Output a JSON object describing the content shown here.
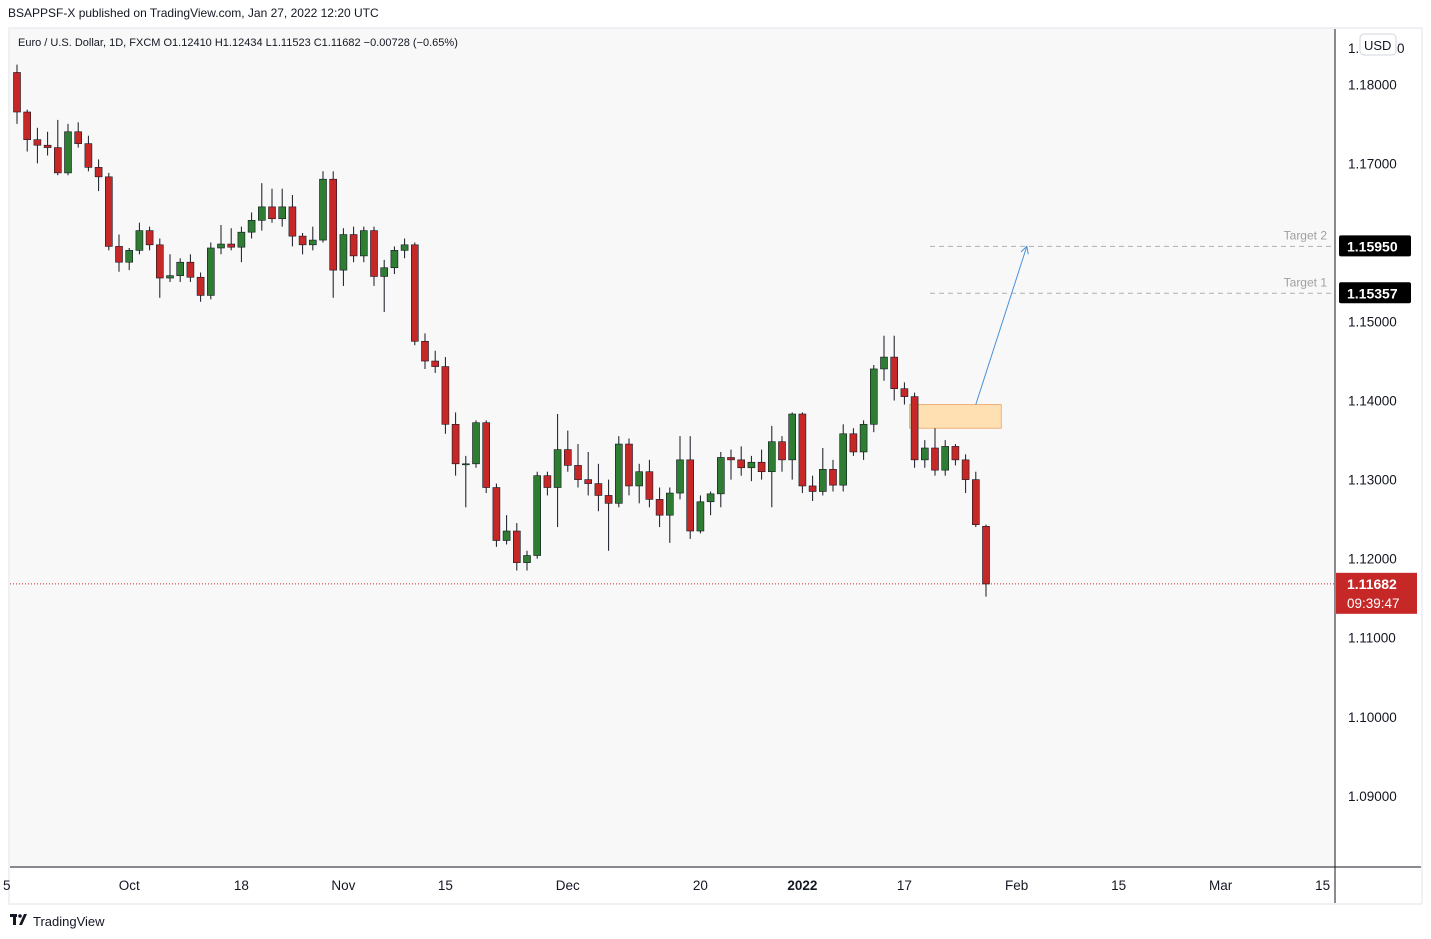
{
  "header": {
    "published": "BSAPPSF-X published on TradingView.com, Jan 27, 2022 12:20 UTC"
  },
  "chart_data": {
    "type": "candlestick",
    "title": "Euro / U.S. Dollar, 1D, FXCM",
    "ohlc_label": {
      "o": "O1.12410",
      "h": "H1.12434",
      "l": "L1.11523",
      "c": "C1.11682",
      "change": "−0.00728 (−0.65%)"
    },
    "currency": "USD",
    "ylim": [
      1.081,
      1.187
    ],
    "y_ticks": [
      1.09,
      1.1,
      1.11,
      1.12,
      1.13,
      1.14,
      1.15,
      1.17,
      1.18
    ],
    "y_tick_labels": [
      "1.09000",
      "1.10000",
      "1.11000",
      "1.12000",
      "1.13000",
      "1.14000",
      "1.15000",
      "1.17000",
      "1.18000"
    ],
    "top_tick_label": "1.",
    "top_tick_label_tail": "0",
    "x_ticks": [
      {
        "label": "5",
        "bar": -1,
        "bold": false
      },
      {
        "label": "Oct",
        "bar": 11,
        "bold": false
      },
      {
        "label": "18",
        "bar": 22,
        "bold": false
      },
      {
        "label": "Nov",
        "bar": 32,
        "bold": false
      },
      {
        "label": "15",
        "bar": 42,
        "bold": false
      },
      {
        "label": "Dec",
        "bar": 54,
        "bold": false
      },
      {
        "label": "20",
        "bar": 67,
        "bold": false
      },
      {
        "label": "2022",
        "bar": 77,
        "bold": true
      },
      {
        "label": "17",
        "bar": 87,
        "bold": false
      },
      {
        "label": "Feb",
        "bar": 98,
        "bold": false
      },
      {
        "label": "15",
        "bar": 108,
        "bold": false
      },
      {
        "label": "Mar",
        "bar": 118,
        "bold": false
      },
      {
        "label": "15",
        "bar": 128,
        "bold": false
      }
    ],
    "candles": [
      {
        "o": 1.1815,
        "h": 1.1825,
        "l": 1.175,
        "c": 1.1765
      },
      {
        "o": 1.1765,
        "h": 1.1768,
        "l": 1.1715,
        "c": 1.173
      },
      {
        "o": 1.173,
        "h": 1.1745,
        "l": 1.17,
        "c": 1.1723
      },
      {
        "o": 1.1723,
        "h": 1.174,
        "l": 1.171,
        "c": 1.172
      },
      {
        "o": 1.172,
        "h": 1.1755,
        "l": 1.1685,
        "c": 1.1688
      },
      {
        "o": 1.1688,
        "h": 1.175,
        "l": 1.1685,
        "c": 1.174
      },
      {
        "o": 1.174,
        "h": 1.1752,
        "l": 1.172,
        "c": 1.1725
      },
      {
        "o": 1.1725,
        "h": 1.1735,
        "l": 1.169,
        "c": 1.1695
      },
      {
        "o": 1.1695,
        "h": 1.1705,
        "l": 1.1665,
        "c": 1.1683
      },
      {
        "o": 1.1683,
        "h": 1.1688,
        "l": 1.159,
        "c": 1.1595
      },
      {
        "o": 1.1595,
        "h": 1.161,
        "l": 1.1563,
        "c": 1.1575
      },
      {
        "o": 1.1575,
        "h": 1.1593,
        "l": 1.1565,
        "c": 1.159
      },
      {
        "o": 1.159,
        "h": 1.1625,
        "l": 1.1585,
        "c": 1.1615
      },
      {
        "o": 1.1615,
        "h": 1.162,
        "l": 1.159,
        "c": 1.1597
      },
      {
        "o": 1.1597,
        "h": 1.1605,
        "l": 1.153,
        "c": 1.1555
      },
      {
        "o": 1.1555,
        "h": 1.1585,
        "l": 1.155,
        "c": 1.1558
      },
      {
        "o": 1.1558,
        "h": 1.158,
        "l": 1.155,
        "c": 1.1575
      },
      {
        "o": 1.1575,
        "h": 1.1585,
        "l": 1.155,
        "c": 1.1556
      },
      {
        "o": 1.1556,
        "h": 1.1562,
        "l": 1.1525,
        "c": 1.1533
      },
      {
        "o": 1.1533,
        "h": 1.16,
        "l": 1.1528,
        "c": 1.1593
      },
      {
        "o": 1.1593,
        "h": 1.1622,
        "l": 1.1585,
        "c": 1.1598
      },
      {
        "o": 1.1598,
        "h": 1.1618,
        "l": 1.159,
        "c": 1.1594
      },
      {
        "o": 1.1594,
        "h": 1.162,
        "l": 1.1575,
        "c": 1.1613
      },
      {
        "o": 1.1613,
        "h": 1.1638,
        "l": 1.1605,
        "c": 1.1628
      },
      {
        "o": 1.1628,
        "h": 1.1675,
        "l": 1.1615,
        "c": 1.1645
      },
      {
        "o": 1.1645,
        "h": 1.1668,
        "l": 1.1625,
        "c": 1.163
      },
      {
        "o": 1.163,
        "h": 1.1668,
        "l": 1.162,
        "c": 1.1645
      },
      {
        "o": 1.1645,
        "h": 1.166,
        "l": 1.1595,
        "c": 1.1608
      },
      {
        "o": 1.1608,
        "h": 1.1612,
        "l": 1.1585,
        "c": 1.1597
      },
      {
        "o": 1.1597,
        "h": 1.162,
        "l": 1.159,
        "c": 1.1603
      },
      {
        "o": 1.1603,
        "h": 1.169,
        "l": 1.16,
        "c": 1.168
      },
      {
        "o": 1.168,
        "h": 1.169,
        "l": 1.153,
        "c": 1.1565
      },
      {
        "o": 1.1565,
        "h": 1.1618,
        "l": 1.1545,
        "c": 1.161
      },
      {
        "o": 1.161,
        "h": 1.162,
        "l": 1.1575,
        "c": 1.1583
      },
      {
        "o": 1.1583,
        "h": 1.162,
        "l": 1.1575,
        "c": 1.1615
      },
      {
        "o": 1.1615,
        "h": 1.162,
        "l": 1.1545,
        "c": 1.1557
      },
      {
        "o": 1.1557,
        "h": 1.1578,
        "l": 1.1512,
        "c": 1.1568
      },
      {
        "o": 1.1568,
        "h": 1.1595,
        "l": 1.156,
        "c": 1.159
      },
      {
        "o": 1.159,
        "h": 1.1605,
        "l": 1.158,
        "c": 1.1597
      },
      {
        "o": 1.1597,
        "h": 1.16,
        "l": 1.147,
        "c": 1.1475
      },
      {
        "o": 1.1475,
        "h": 1.1485,
        "l": 1.144,
        "c": 1.145
      },
      {
        "o": 1.145,
        "h": 1.1463,
        "l": 1.1435,
        "c": 1.1443
      },
      {
        "o": 1.1443,
        "h": 1.1455,
        "l": 1.1358,
        "c": 1.137
      },
      {
        "o": 1.137,
        "h": 1.1385,
        "l": 1.1305,
        "c": 1.132
      },
      {
        "o": 1.132,
        "h": 1.133,
        "l": 1.1265,
        "c": 1.132
      },
      {
        "o": 1.132,
        "h": 1.1375,
        "l": 1.1315,
        "c": 1.1372
      },
      {
        "o": 1.1372,
        "h": 1.1375,
        "l": 1.1283,
        "c": 1.129
      },
      {
        "o": 1.129,
        "h": 1.1295,
        "l": 1.1215,
        "c": 1.1223
      },
      {
        "o": 1.1223,
        "h": 1.1255,
        "l": 1.1218,
        "c": 1.1235
      },
      {
        "o": 1.1235,
        "h": 1.1245,
        "l": 1.1185,
        "c": 1.1195
      },
      {
        "o": 1.1195,
        "h": 1.121,
        "l": 1.1185,
        "c": 1.1204
      },
      {
        "o": 1.1204,
        "h": 1.131,
        "l": 1.12,
        "c": 1.1305
      },
      {
        "o": 1.1305,
        "h": 1.131,
        "l": 1.128,
        "c": 1.129
      },
      {
        "o": 1.129,
        "h": 1.1383,
        "l": 1.124,
        "c": 1.1338
      },
      {
        "o": 1.1338,
        "h": 1.1362,
        "l": 1.131,
        "c": 1.1318
      },
      {
        "o": 1.1318,
        "h": 1.1345,
        "l": 1.129,
        "c": 1.13
      },
      {
        "o": 1.13,
        "h": 1.1335,
        "l": 1.128,
        "c": 1.1295
      },
      {
        "o": 1.1295,
        "h": 1.132,
        "l": 1.126,
        "c": 1.128
      },
      {
        "o": 1.128,
        "h": 1.13,
        "l": 1.121,
        "c": 1.127
      },
      {
        "o": 1.127,
        "h": 1.1355,
        "l": 1.1265,
        "c": 1.1345
      },
      {
        "o": 1.1345,
        "h": 1.1352,
        "l": 1.128,
        "c": 1.1292
      },
      {
        "o": 1.1292,
        "h": 1.132,
        "l": 1.127,
        "c": 1.131
      },
      {
        "o": 1.131,
        "h": 1.1325,
        "l": 1.1265,
        "c": 1.1275
      },
      {
        "o": 1.1275,
        "h": 1.129,
        "l": 1.124,
        "c": 1.1255
      },
      {
        "o": 1.1255,
        "h": 1.129,
        "l": 1.122,
        "c": 1.1283
      },
      {
        "o": 1.1283,
        "h": 1.1355,
        "l": 1.1275,
        "c": 1.1325
      },
      {
        "o": 1.1325,
        "h": 1.1355,
        "l": 1.1225,
        "c": 1.1235
      },
      {
        "o": 1.1235,
        "h": 1.128,
        "l": 1.1232,
        "c": 1.1272
      },
      {
        "o": 1.1272,
        "h": 1.1285,
        "l": 1.1255,
        "c": 1.1282
      },
      {
        "o": 1.1282,
        "h": 1.1335,
        "l": 1.1265,
        "c": 1.1328
      },
      {
        "o": 1.1328,
        "h": 1.1338,
        "l": 1.13,
        "c": 1.1325
      },
      {
        "o": 1.1325,
        "h": 1.1342,
        "l": 1.1305,
        "c": 1.1315
      },
      {
        "o": 1.1315,
        "h": 1.133,
        "l": 1.1298,
        "c": 1.1322
      },
      {
        "o": 1.1322,
        "h": 1.1338,
        "l": 1.13,
        "c": 1.131
      },
      {
        "o": 1.131,
        "h": 1.1368,
        "l": 1.1265,
        "c": 1.1348
      },
      {
        "o": 1.1348,
        "h": 1.1355,
        "l": 1.131,
        "c": 1.1325
      },
      {
        "o": 1.1325,
        "h": 1.1385,
        "l": 1.13,
        "c": 1.1383
      },
      {
        "o": 1.1383,
        "h": 1.1385,
        "l": 1.1283,
        "c": 1.1292
      },
      {
        "o": 1.1292,
        "h": 1.1305,
        "l": 1.1273,
        "c": 1.1285
      },
      {
        "o": 1.1285,
        "h": 1.134,
        "l": 1.128,
        "c": 1.1313
      },
      {
        "o": 1.1313,
        "h": 1.1325,
        "l": 1.1285,
        "c": 1.1293
      },
      {
        "o": 1.1293,
        "h": 1.137,
        "l": 1.1285,
        "c": 1.1358
      },
      {
        "o": 1.1358,
        "h": 1.1365,
        "l": 1.133,
        "c": 1.1335
      },
      {
        "o": 1.1335,
        "h": 1.1375,
        "l": 1.1325,
        "c": 1.137
      },
      {
        "o": 1.137,
        "h": 1.1445,
        "l": 1.136,
        "c": 1.144
      },
      {
        "o": 1.144,
        "h": 1.1482,
        "l": 1.1425,
        "c": 1.1455
      },
      {
        "o": 1.1455,
        "h": 1.1482,
        "l": 1.14,
        "c": 1.1415
      },
      {
        "o": 1.1415,
        "h": 1.1423,
        "l": 1.1395,
        "c": 1.1405
      },
      {
        "o": 1.1405,
        "h": 1.141,
        "l": 1.1315,
        "c": 1.1325
      },
      {
        "o": 1.1325,
        "h": 1.135,
        "l": 1.1315,
        "c": 1.134
      },
      {
        "o": 1.134,
        "h": 1.1365,
        "l": 1.1305,
        "c": 1.1312
      },
      {
        "o": 1.1312,
        "h": 1.135,
        "l": 1.1305,
        "c": 1.1342
      },
      {
        "o": 1.1342,
        "h": 1.1345,
        "l": 1.1318,
        "c": 1.1325
      },
      {
        "o": 1.1325,
        "h": 1.1332,
        "l": 1.1283,
        "c": 1.13
      },
      {
        "o": 1.13,
        "h": 1.131,
        "l": 1.124,
        "c": 1.1243
      },
      {
        "o": 1.1241,
        "h": 1.1243,
        "l": 1.1152,
        "c": 1.1168
      }
    ],
    "current_price": {
      "label": "1.11682",
      "countdown": "09:39:47",
      "value": 1.11682
    },
    "targets": [
      {
        "label": "Target 1",
        "value": 1.15357,
        "price_label": "1.15357"
      },
      {
        "label": "Target 2",
        "value": 1.1595,
        "price_label": "1.15950"
      }
    ],
    "zone": {
      "bar_start": 87.5,
      "bar_end": 96.5,
      "top": 1.1395,
      "bottom": 1.1365
    },
    "arrow": {
      "from_bar": 94,
      "from_value": 1.1395,
      "to_bar": 99,
      "to_value": 1.1595
    },
    "colors": {
      "up": "#2e7d32",
      "down": "#c62828",
      "grid_bg": "#f8f8f8",
      "axis_line": "#131722",
      "current": "#c62828",
      "zone_fill": "#ffe0b2",
      "zone_stroke": "#f0b27a",
      "arrow": "#4a90d9",
      "target_line": "#b0b0b0",
      "target_label_bg": "#000000"
    }
  },
  "footer": {
    "logo_icon": "tradingview-logo-icon",
    "brand": "TradingView"
  }
}
